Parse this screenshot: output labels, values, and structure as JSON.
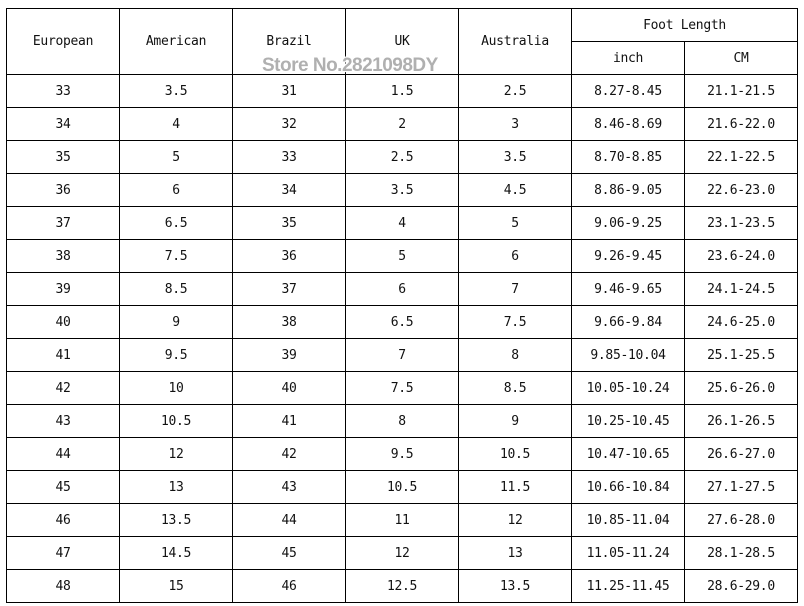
{
  "header": {
    "european": "European",
    "american": "American",
    "brazil": "Brazil",
    "uk": "UK",
    "australia": "Australia",
    "foot_length": "Foot Length",
    "inch": "inch",
    "cm": "CM"
  },
  "watermark": "Store No.2821098DY",
  "rows": [
    [
      "33",
      "3.5",
      "31",
      "1.5",
      "2.5",
      "8.27-8.45",
      "21.1-21.5"
    ],
    [
      "34",
      "4",
      "32",
      "2",
      "3",
      "8.46-8.69",
      "21.6-22.0"
    ],
    [
      "35",
      "5",
      "33",
      "2.5",
      "3.5",
      "8.70-8.85",
      "22.1-22.5"
    ],
    [
      "36",
      "6",
      "34",
      "3.5",
      "4.5",
      "8.86-9.05",
      "22.6-23.0"
    ],
    [
      "37",
      "6.5",
      "35",
      "4",
      "5",
      "9.06-9.25",
      "23.1-23.5"
    ],
    [
      "38",
      "7.5",
      "36",
      "5",
      "6",
      "9.26-9.45",
      "23.6-24.0"
    ],
    [
      "39",
      "8.5",
      "37",
      "6",
      "7",
      "9.46-9.65",
      "24.1-24.5"
    ],
    [
      "40",
      "9",
      "38",
      "6.5",
      "7.5",
      "9.66-9.84",
      "24.6-25.0"
    ],
    [
      "41",
      "9.5",
      "39",
      "7",
      "8",
      "9.85-10.04",
      "25.1-25.5"
    ],
    [
      "42",
      "10",
      "40",
      "7.5",
      "8.5",
      "10.05-10.24",
      "25.6-26.0"
    ],
    [
      "43",
      "10.5",
      "41",
      "8",
      "9",
      "10.25-10.45",
      "26.1-26.5"
    ],
    [
      "44",
      "12",
      "42",
      "9.5",
      "10.5",
      "10.47-10.65",
      "26.6-27.0"
    ],
    [
      "45",
      "13",
      "43",
      "10.5",
      "11.5",
      "10.66-10.84",
      "27.1-27.5"
    ],
    [
      "46",
      "13.5",
      "44",
      "11",
      "12",
      "10.85-11.04",
      "27.6-28.0"
    ],
    [
      "47",
      "14.5",
      "45",
      "12",
      "13",
      "11.05-11.24",
      "28.1-28.5"
    ],
    [
      "48",
      "15",
      "46",
      "12.5",
      "13.5",
      "11.25-11.45",
      "28.6-29.0"
    ]
  ]
}
